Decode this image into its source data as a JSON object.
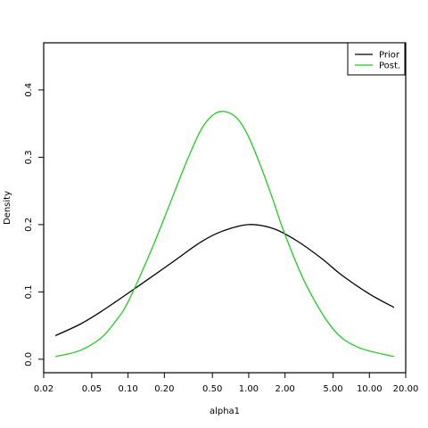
{
  "chart_data": {
    "type": "line",
    "title": "",
    "xlabel": "alpha1",
    "ylabel": "Density",
    "x_scale": "log",
    "xlim": [
      0.02,
      20
    ],
    "ylim": [
      -0.02,
      0.47
    ],
    "x_ticks": [
      {
        "value": 0.02,
        "label": "0.02"
      },
      {
        "value": 0.05,
        "label": "0.05"
      },
      {
        "value": 0.1,
        "label": "0.10"
      },
      {
        "value": 0.2,
        "label": "0.20"
      },
      {
        "value": 0.5,
        "label": "0.50"
      },
      {
        "value": 1,
        "label": "1.00"
      },
      {
        "value": 2,
        "label": "2.00"
      },
      {
        "value": 5,
        "label": "5.00"
      },
      {
        "value": 10,
        "label": "10.00"
      },
      {
        "value": 20,
        "label": "20.00"
      }
    ],
    "y_ticks": [
      {
        "value": 0,
        "label": "0.0"
      },
      {
        "value": 0.1,
        "label": "0.1"
      },
      {
        "value": 0.2,
        "label": "0.2"
      },
      {
        "value": 0.3,
        "label": "0.3"
      },
      {
        "value": 0.4,
        "label": "0.4"
      }
    ],
    "grid": false,
    "legend_position": "top-right",
    "series": [
      {
        "name": "Prior",
        "color": "#000000",
        "x": [
          0.025,
          0.04,
          0.06,
          0.1,
          0.15,
          0.25,
          0.4,
          0.6,
          1.0,
          1.6,
          2.5,
          4.0,
          6.0,
          10.0,
          16.0
        ],
        "y": [
          0.035,
          0.052,
          0.071,
          0.098,
          0.12,
          0.148,
          0.174,
          0.19,
          0.2,
          0.194,
          0.176,
          0.15,
          0.124,
          0.097,
          0.077
        ]
      },
      {
        "name": "Post.",
        "color": "#22cc22",
        "x": [
          0.025,
          0.04,
          0.06,
          0.08,
          0.1,
          0.15,
          0.2,
          0.3,
          0.4,
          0.5,
          0.62,
          0.8,
          1.0,
          1.3,
          1.6,
          2.0,
          3.0,
          5.0,
          8.0,
          16.0
        ],
        "y": [
          0.004,
          0.013,
          0.032,
          0.058,
          0.085,
          0.155,
          0.21,
          0.29,
          0.34,
          0.362,
          0.368,
          0.358,
          0.33,
          0.28,
          0.235,
          0.185,
          0.11,
          0.045,
          0.018,
          0.004
        ]
      }
    ]
  }
}
